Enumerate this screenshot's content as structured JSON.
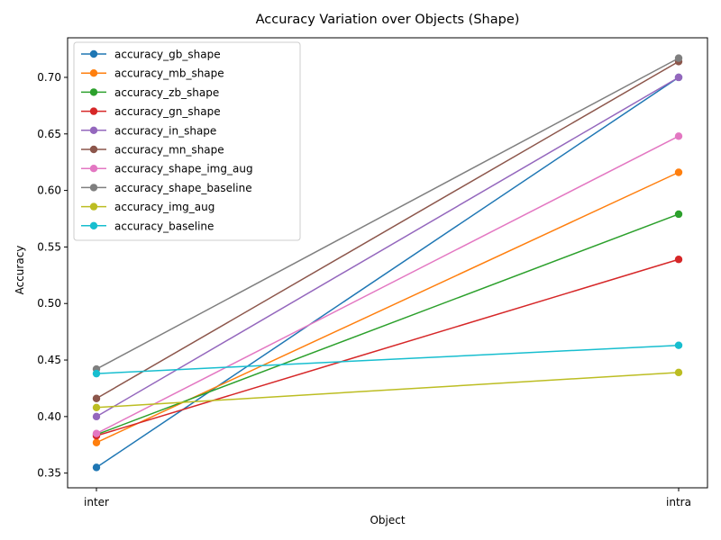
{
  "chart_data": {
    "type": "line",
    "title": "Accuracy Variation over Objects (Shape)",
    "xlabel": "Object",
    "ylabel": "Accuracy",
    "categories": [
      "inter",
      "intra"
    ],
    "ylim": [
      0.337,
      0.735
    ],
    "yticks": [
      0.35,
      0.4,
      0.45,
      0.5,
      0.55,
      0.6,
      0.65,
      0.7
    ],
    "grid": false,
    "legend_position": "top-left",
    "series": [
      {
        "name": "accuracy_gb_shape",
        "color": "#1f77b4",
        "values": [
          0.355,
          0.7
        ]
      },
      {
        "name": "accuracy_mb_shape",
        "color": "#ff7f0e",
        "values": [
          0.377,
          0.616
        ]
      },
      {
        "name": "accuracy_zb_shape",
        "color": "#2ca02c",
        "values": [
          0.384,
          0.579
        ]
      },
      {
        "name": "accuracy_gn_shape",
        "color": "#d62728",
        "values": [
          0.383,
          0.539
        ]
      },
      {
        "name": "accuracy_in_shape",
        "color": "#9467bd",
        "values": [
          0.4,
          0.7
        ]
      },
      {
        "name": "accuracy_mn_shape",
        "color": "#8c564b",
        "values": [
          0.416,
          0.714
        ]
      },
      {
        "name": "accuracy_shape_img_aug",
        "color": "#e377c2",
        "values": [
          0.385,
          0.648
        ]
      },
      {
        "name": "accuracy_shape_baseline",
        "color": "#7f7f7f",
        "values": [
          0.442,
          0.717
        ]
      },
      {
        "name": "accuracy_img_aug",
        "color": "#bcbd22",
        "values": [
          0.408,
          0.439
        ]
      },
      {
        "name": "accuracy_baseline",
        "color": "#17becf",
        "values": [
          0.438,
          0.463
        ]
      }
    ]
  }
}
